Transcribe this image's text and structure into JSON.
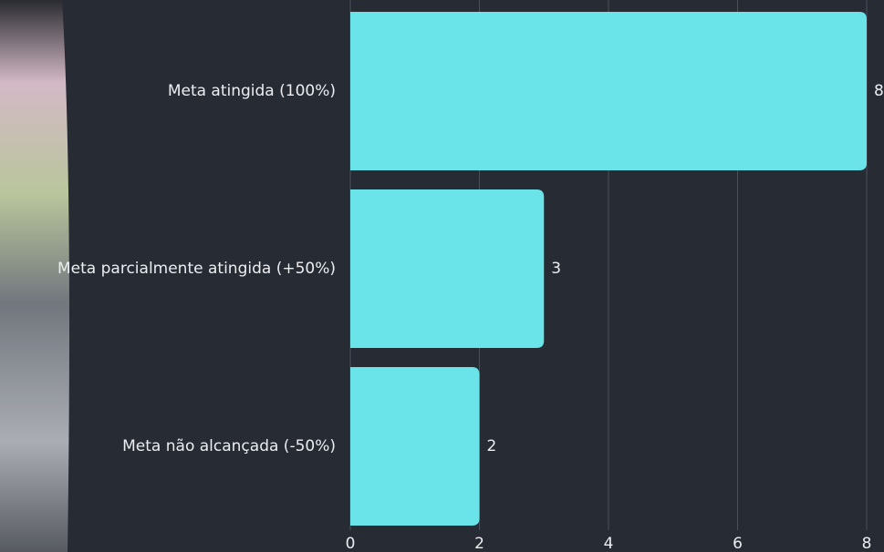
{
  "chart_data": {
    "type": "bar",
    "orientation": "horizontal",
    "categories": [
      "Meta atingida (100%)",
      "Meta parcialmente atingida (+50%)",
      "Meta não alcançada (-50%)"
    ],
    "values": [
      8,
      3,
      2
    ],
    "color": "#6ae4e9",
    "xlim": [
      0,
      8
    ],
    "xticks": [
      0,
      2,
      4,
      6,
      8
    ],
    "grid": true
  }
}
